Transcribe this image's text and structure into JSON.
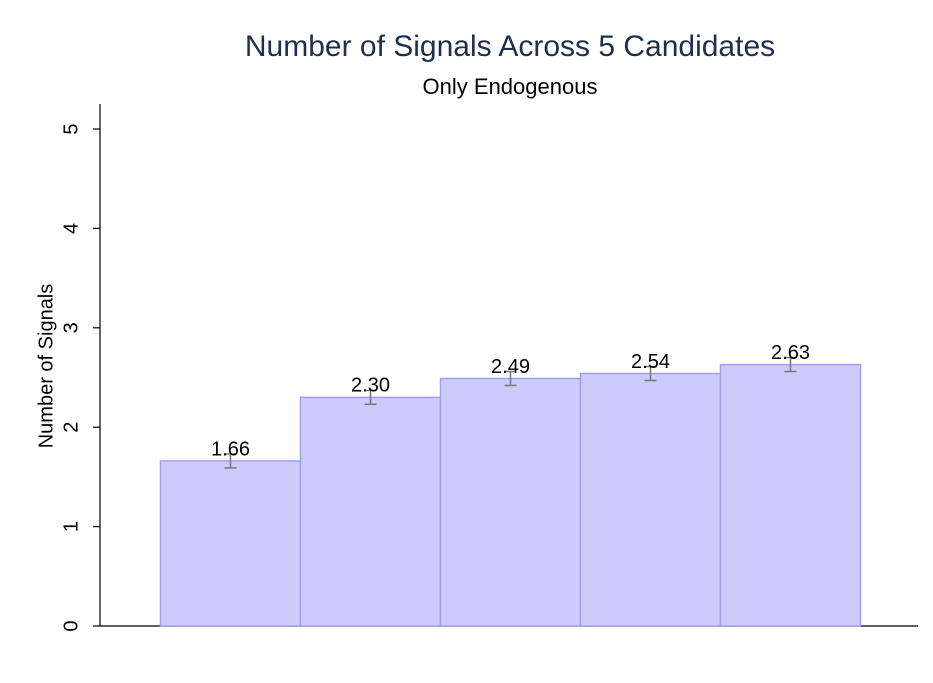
{
  "chart_data": {
    "type": "bar",
    "title": "Number of Signals  Across 5 Candidates",
    "subtitle": "Only Endogenous",
    "ylabel": "Number of Signals",
    "categories": [
      null,
      null,
      null,
      null,
      null
    ],
    "values": [
      1.66,
      2.3,
      2.49,
      2.54,
      2.63
    ],
    "value_labels": [
      "1.66",
      "2.30",
      "2.49",
      "2.54",
      "2.63"
    ],
    "errors": [
      0.07,
      0.07,
      0.07,
      0.07,
      0.07
    ],
    "color": "#ccccfc",
    "ylim": [
      0,
      5
    ],
    "yticks": [
      0,
      1,
      2,
      3,
      4,
      5
    ],
    "grid": false
  }
}
